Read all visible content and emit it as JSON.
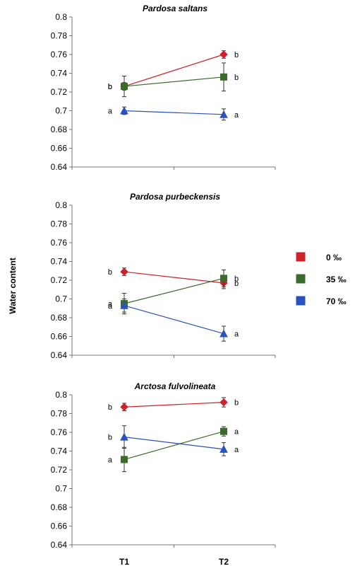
{
  "figure": {
    "ylabel": "Water content",
    "x_categories": [
      "T1",
      "T2"
    ]
  },
  "legend": {
    "entries": [
      {
        "label": "0 ‰",
        "color": "#d0202a",
        "marker": "diamond"
      },
      {
        "label": "35 ‰",
        "color": "#3a6b2a",
        "marker": "square"
      },
      {
        "label": "70 ‰",
        "color": "#2a52be",
        "marker": "triangle"
      }
    ]
  },
  "chart_data": [
    {
      "type": "line",
      "title": "Pardosa saltans",
      "categories": [
        "T1",
        "T2"
      ],
      "ylabel": "Water content",
      "ylim": [
        0.64,
        0.8
      ],
      "yticks": [
        "0.64",
        "0.66",
        "0.68",
        "0.7",
        "0.72",
        "0.74",
        "0.76",
        "0.78",
        "0.8"
      ],
      "series": [
        {
          "name": "0 ‰",
          "values": [
            0.726,
            0.76
          ],
          "errors": [
            0.004,
            0.004
          ],
          "letters": [
            "b",
            "b"
          ]
        },
        {
          "name": "35 ‰",
          "values": [
            0.726,
            0.736
          ],
          "errors": [
            0.011,
            0.015
          ],
          "letters": [
            "b",
            "b"
          ]
        },
        {
          "name": "70 ‰",
          "values": [
            0.7,
            0.696
          ],
          "errors": [
            0.004,
            0.006
          ],
          "letters": [
            "a",
            "a"
          ]
        }
      ]
    },
    {
      "type": "line",
      "title": "Pardosa purbeckensis",
      "categories": [
        "T1",
        "T2"
      ],
      "ylabel": "Water content",
      "ylim": [
        0.64,
        0.8
      ],
      "yticks": [
        "0.64",
        "0.66",
        "0.68",
        "0.7",
        "0.72",
        "0.74",
        "0.76",
        "0.78",
        "0.8"
      ],
      "series": [
        {
          "name": "0 ‰",
          "values": [
            0.729,
            0.717
          ],
          "errors": [
            0.004,
            0.006
          ],
          "letters": [
            "b",
            "b"
          ]
        },
        {
          "name": "35 ‰",
          "values": [
            0.695,
            0.722
          ],
          "errors": [
            0.011,
            0.009
          ],
          "letters": [
            "a",
            "b"
          ]
        },
        {
          "name": "70 ‰",
          "values": [
            0.693,
            0.663
          ],
          "errors": [
            0.007,
            0.008
          ],
          "letters": [
            "a",
            "a"
          ]
        }
      ]
    },
    {
      "type": "line",
      "title": "Arctosa fulvolineata",
      "categories": [
        "T1",
        "T2"
      ],
      "ylabel": "Water content",
      "ylim": [
        0.64,
        0.8
      ],
      "yticks": [
        "0.64",
        "0.66",
        "0.68",
        "0.7",
        "0.72",
        "0.74",
        "0.76",
        "0.78",
        "0.8"
      ],
      "series": [
        {
          "name": "0 ‰",
          "values": [
            0.787,
            0.792
          ],
          "errors": [
            0.004,
            0.005
          ],
          "letters": [
            "b",
            "b"
          ]
        },
        {
          "name": "35 ‰",
          "values": [
            0.731,
            0.761
          ],
          "errors": [
            0.013,
            0.005
          ],
          "letters": [
            "a",
            "a"
          ]
        },
        {
          "name": "70 ‰",
          "values": [
            0.755,
            0.742
          ],
          "errors": [
            0.012,
            0.007
          ],
          "letters": [
            "b",
            "a"
          ]
        }
      ]
    }
  ]
}
